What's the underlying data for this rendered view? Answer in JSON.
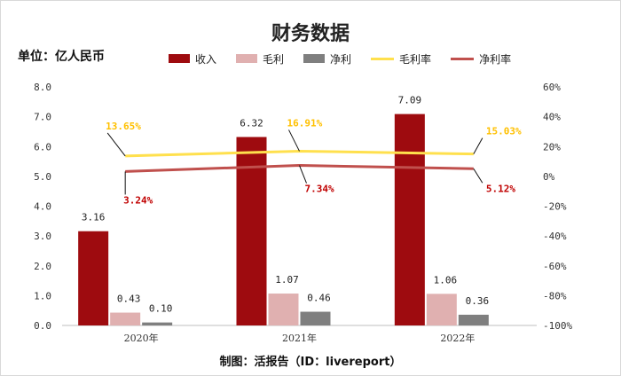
{
  "header": {
    "title": "财务数据",
    "unit_label": "单位：亿人民币",
    "credit": "制图：活报告（ID：livereport）"
  },
  "chart_data": {
    "type": "bar",
    "categories": [
      "2020年",
      "2021年",
      "2022年"
    ],
    "series": [
      {
        "name": "收入",
        "values": [
          3.16,
          6.32,
          7.09
        ],
        "color": "#9e0b0f",
        "axis": "left",
        "labels": [
          "3.16",
          "6.32",
          "7.09"
        ]
      },
      {
        "name": "毛利",
        "values": [
          0.43,
          1.07,
          1.06
        ],
        "color": "#e0b0b0",
        "axis": "left",
        "labels": [
          "0.43",
          "1.07",
          "1.06"
        ]
      },
      {
        "name": "净利",
        "values": [
          0.1,
          0.46,
          0.36
        ],
        "color": "#7f7f7f",
        "axis": "left",
        "labels": [
          "0.10",
          "0.46",
          "0.36"
        ]
      }
    ],
    "line_series": [
      {
        "name": "毛利率",
        "type": "line",
        "values": [
          13.65,
          16.91,
          15.03
        ],
        "color": "#ffe04d",
        "label_color": "#ffc000",
        "axis": "right",
        "labels": [
          "13.65%",
          "16.91%",
          "15.03%"
        ]
      },
      {
        "name": "净利率",
        "type": "line",
        "values": [
          3.24,
          7.34,
          5.12
        ],
        "color": "#c0504d",
        "label_color": "#c00000",
        "axis": "right",
        "labels": [
          "3.24%",
          "7.34%",
          "5.12%"
        ]
      }
    ],
    "y_left": {
      "ylim": [
        0,
        8
      ],
      "ticks": [
        "0.0",
        "1.0",
        "2.0",
        "3.0",
        "4.0",
        "5.0",
        "6.0",
        "7.0",
        "8.0"
      ]
    },
    "y_right": {
      "ylim": [
        -100,
        60
      ],
      "ticks": [
        "-100%",
        "-80%",
        "-60%",
        "-40%",
        "-20%",
        "0%",
        "20%",
        "40%",
        "60%"
      ]
    },
    "grid": false,
    "legend_position": "top"
  }
}
